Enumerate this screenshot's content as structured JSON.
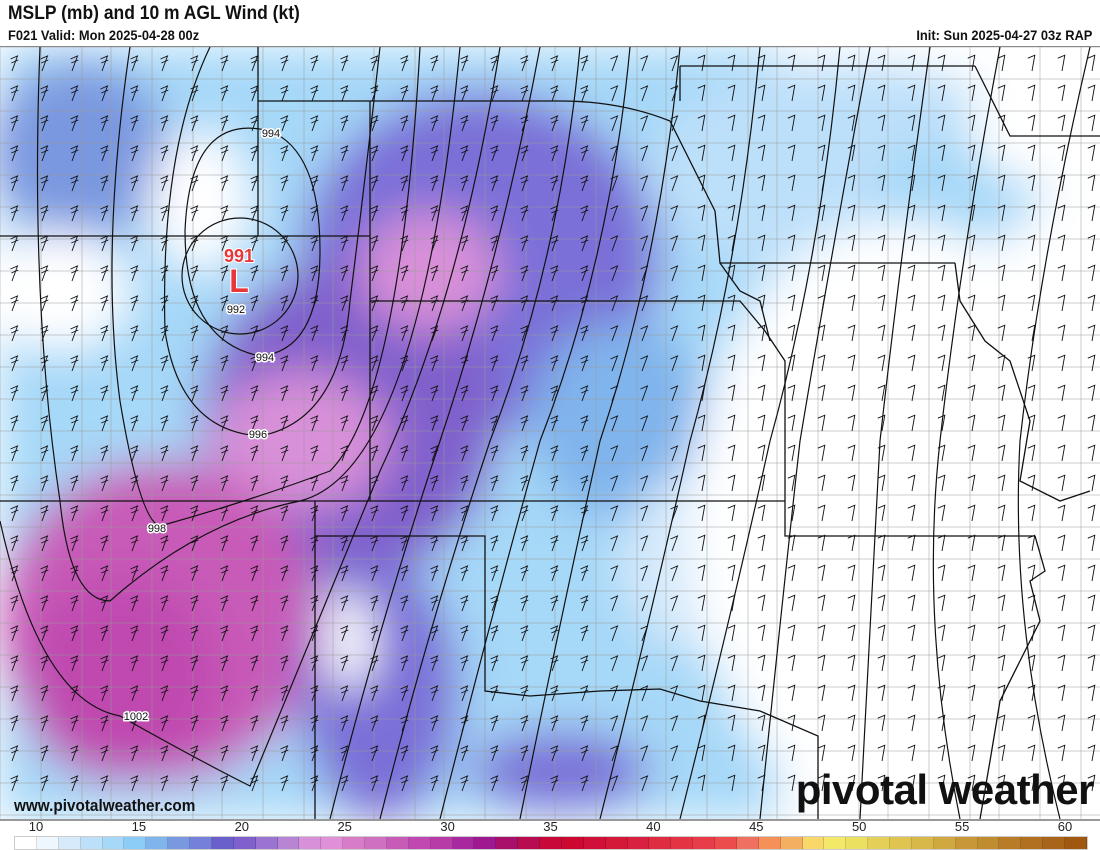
{
  "header": {
    "title": "MSLP (mb) and 10 m AGL Wind (kt)",
    "valid": "F021 Valid: Mon 2025-04-28 00z",
    "init": "Init: Sun 2025-04-27 03z RAP"
  },
  "map": {
    "low_center": {
      "label": "L",
      "pressure": "991",
      "color": "#e8373a"
    },
    "isobar_labels": [
      "994",
      "992",
      "994",
      "996",
      "998",
      "1002"
    ],
    "website": "www.pivotalweather.com",
    "logo_text": "pivotal weather"
  },
  "colorbar": {
    "units": "kt",
    "ticks": [
      "10",
      "15",
      "20",
      "25",
      "30",
      "35",
      "40",
      "45",
      "50",
      "55",
      "60"
    ],
    "colors": [
      "#ffffff",
      "#eef6fe",
      "#d6eafb",
      "#bde0fa",
      "#a6d8f8",
      "#8ccdf7",
      "#80b4ec",
      "#7a98e0",
      "#7480da",
      "#6a60cc",
      "#8060cc",
      "#9a74d0",
      "#b884d4",
      "#d890d8",
      "#e090d8",
      "#d87cc8",
      "#d070c0",
      "#c85ab8",
      "#c048b0",
      "#b83ca8",
      "#a828a0",
      "#a01890",
      "#a8106c",
      "#b80c50",
      "#c80838",
      "#cc0830",
      "#d01038",
      "#d41838",
      "#d82040",
      "#e02c40",
      "#e43444",
      "#e83c48",
      "#ec4c4c",
      "#f07060",
      "#f49058",
      "#f4b060",
      "#f8d868",
      "#f4e868",
      "#ece060",
      "#e4d058",
      "#e0c450",
      "#d8b848",
      "#d0a840",
      "#c89838",
      "#c08c30",
      "#b87c28",
      "#b07020",
      "#a86418",
      "#a05810"
    ]
  }
}
